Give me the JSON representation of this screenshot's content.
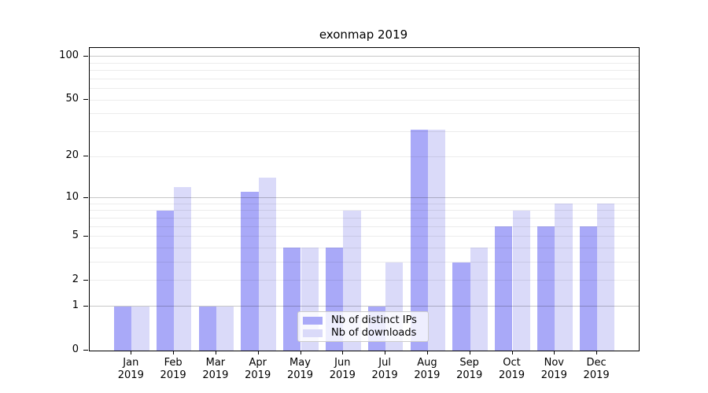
{
  "title": "exonmap 2019",
  "colors": {
    "background": "#ffffff",
    "spine": "#000000",
    "text": "#000000",
    "grid_major": "rgba(0,0,0,0.22)",
    "grid_minor": "rgba(0,0,0,0.075)",
    "series_dark": "#a9a9f8",
    "series_light": "#dadaf9",
    "legend_border": "#cccccc"
  },
  "chart_data": {
    "type": "bar",
    "title": "exonmap 2019",
    "categories": [
      "Jan 2019",
      "Feb 2019",
      "Mar 2019",
      "Apr 2019",
      "May 2019",
      "Jun 2019",
      "Jul 2019",
      "Aug 2019",
      "Sep 2019",
      "Oct 2019",
      "Nov 2019",
      "Dec 2019"
    ],
    "series": [
      {
        "name": "Nb of distinct IPs",
        "color": "#a9a9f8",
        "values": [
          1,
          8,
          1,
          11,
          4,
          4,
          1,
          31,
          3,
          6,
          6,
          6
        ]
      },
      {
        "name": "Nb of downloads",
        "color": "#dadaf9",
        "values": [
          1,
          12,
          1,
          14,
          4,
          8,
          3,
          31,
          4,
          8,
          9,
          9
        ]
      }
    ],
    "yscale": "log1p",
    "ylim": [
      0,
      114
    ],
    "xlabel": "",
    "ylabel": "",
    "y_ticks": [
      100,
      50,
      20,
      10,
      5,
      2,
      1,
      0
    ],
    "grid_major": [
      1,
      10,
      100
    ],
    "grid_minor": [
      2,
      3,
      4,
      5,
      6,
      7,
      8,
      9,
      20,
      30,
      40,
      50,
      60,
      70,
      80,
      90
    ],
    "grid": "on",
    "legend_position": "lower center"
  }
}
